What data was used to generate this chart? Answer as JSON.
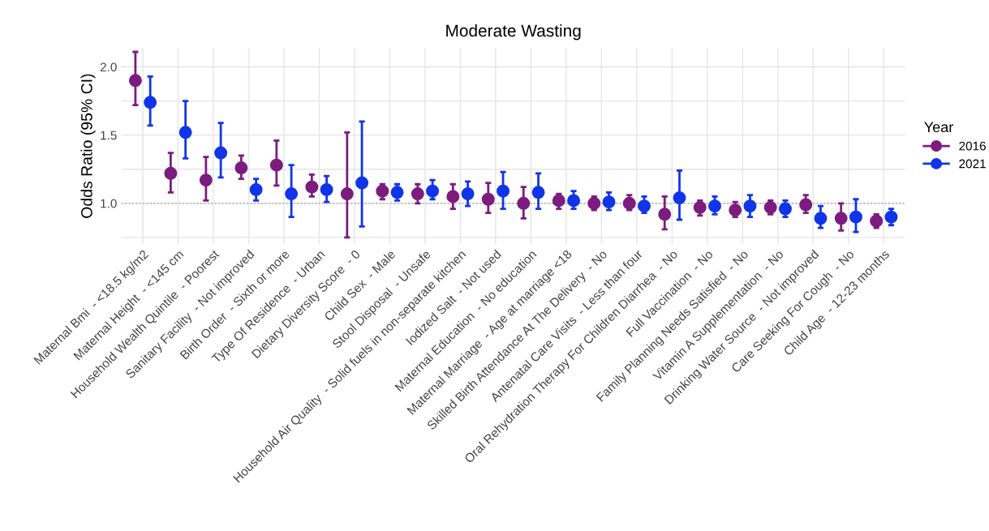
{
  "chart_data": {
    "type": "scatter",
    "title": "Moderate Wasting",
    "ylabel": "Odds Ratio (95% CI)",
    "legend_title": "Year",
    "legend": "right",
    "grid": true,
    "marker": "circle",
    "categories": [
      "Maternal Bmi  - <18.5 kg/m2",
      "Maternal Height  - <145 cm",
      "Household Wealth Quintile  - Poorest",
      "Sanitary Facility  - Not improved",
      "Birth Order  - Sixth or more",
      "Type Of Residence  - Urban",
      "Dietary Diversity Score  - 0",
      "Child Sex  - Male",
      "Stool Disposal  - Unsafe",
      "Household Air Quality  - Solid fuels in non-separate kitchen",
      "Iodized Salt  - Not used",
      "Maternal Education  - No education",
      "Maternal Marriage  - Age at marriage <18",
      "Skilled Birth Attendance At The Delivery  - No",
      "Antenatal Care Visits  - Less than four",
      "Oral Rehydration Therapy For Children Diarrhea  - No",
      "Full Vaccination  - No",
      "Family Planning Needs Satisfied  - No",
      "Vitamin A Supplementation  - No",
      "Drinking Water Source  - Not improved",
      "Care Seeking For Cough  - No",
      "Child Age  - 12-23 months"
    ],
    "ylim": [
      0.7,
      2.14
    ],
    "yticks": [
      {
        "value": 0.75,
        "label": null
      },
      {
        "value": 1,
        "label": "1.0"
      },
      {
        "value": 1.25,
        "label": null
      },
      1.5,
      {
        "value": 1.75,
        "label": null
      },
      {
        "value": 2,
        "label": "2.0"
      }
    ],
    "ref_lines": [
      {
        "axis": "y",
        "value": 1.0,
        "color": "#b0b0b0",
        "line_style": "dotted"
      }
    ],
    "series": [
      {
        "name": "2016",
        "color": "#7b1c7e",
        "values": [
          1.9,
          1.22,
          1.17,
          1.26,
          1.28,
          1.12,
          1.07,
          1.09,
          1.07,
          1.05,
          1.03,
          1.0,
          1.02,
          1.0,
          1.0,
          0.92,
          0.97,
          0.95,
          0.97,
          0.99,
          0.89,
          0.87
        ],
        "errors": [
          [
            1.72,
            2.11
          ],
          [
            1.08,
            1.37
          ],
          [
            1.02,
            1.34
          ],
          [
            1.18,
            1.35
          ],
          [
            1.13,
            1.46
          ],
          [
            1.05,
            1.21
          ],
          [
            0.75,
            1.52
          ],
          [
            1.03,
            1.14
          ],
          [
            1.0,
            1.14
          ],
          [
            0.96,
            1.14
          ],
          [
            0.93,
            1.15
          ],
          [
            0.89,
            1.12
          ],
          [
            0.96,
            1.07
          ],
          [
            0.95,
            1.05
          ],
          [
            0.95,
            1.06
          ],
          [
            0.81,
            1.05
          ],
          [
            0.91,
            1.02
          ],
          [
            0.9,
            1.01
          ],
          [
            0.92,
            1.02
          ],
          [
            0.93,
            1.06
          ],
          [
            0.8,
            1.0
          ],
          [
            0.82,
            0.92
          ]
        ]
      },
      {
        "name": "2021",
        "color": "#1035e8",
        "values": [
          1.74,
          1.52,
          1.37,
          1.1,
          1.07,
          1.1,
          1.15,
          1.08,
          1.09,
          1.07,
          1.09,
          1.08,
          1.02,
          1.01,
          0.98,
          1.04,
          0.98,
          0.98,
          0.96,
          0.89,
          0.9,
          0.9
        ],
        "errors": [
          [
            1.57,
            1.93
          ],
          [
            1.33,
            1.75
          ],
          [
            1.19,
            1.59
          ],
          [
            1.02,
            1.18
          ],
          [
            0.9,
            1.28
          ],
          [
            1.01,
            1.2
          ],
          [
            0.83,
            1.6
          ],
          [
            1.02,
            1.14
          ],
          [
            1.03,
            1.17
          ],
          [
            0.98,
            1.16
          ],
          [
            0.96,
            1.23
          ],
          [
            0.96,
            1.22
          ],
          [
            0.96,
            1.09
          ],
          [
            0.95,
            1.08
          ],
          [
            0.93,
            1.05
          ],
          [
            0.88,
            1.24
          ],
          [
            0.92,
            1.05
          ],
          [
            0.9,
            1.06
          ],
          [
            0.9,
            1.02
          ],
          [
            0.82,
            0.98
          ],
          [
            0.79,
            1.03
          ],
          [
            0.84,
            0.96
          ]
        ]
      }
    ]
  }
}
